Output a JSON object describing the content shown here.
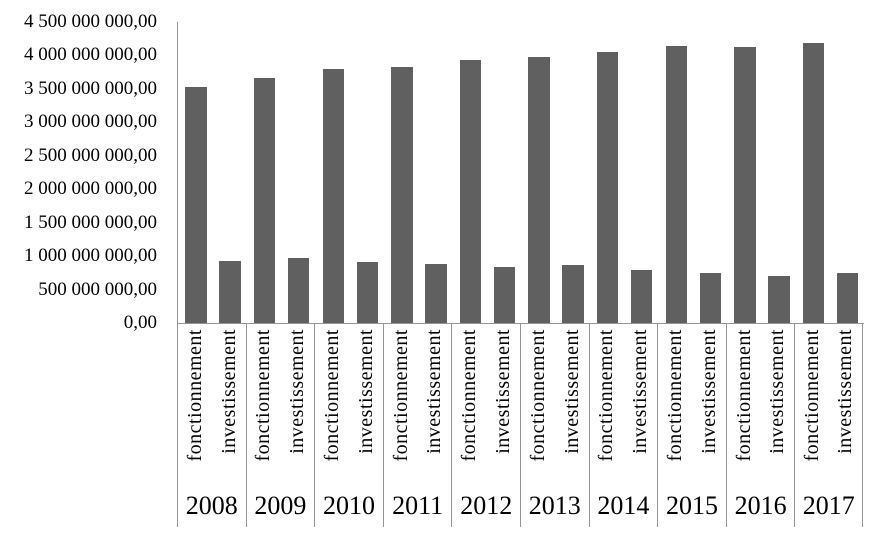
{
  "window": {
    "background": "#ffffff"
  },
  "chart_data": {
    "type": "bar",
    "title": "",
    "categories": [
      "2008",
      "2009",
      "2010",
      "2011",
      "2012",
      "2013",
      "2014",
      "2015",
      "2016",
      "2017"
    ],
    "sub_categories": [
      "fonctionnement",
      "investissement"
    ],
    "series": [
      {
        "name": "fonctionnement",
        "values": [
          3530000000,
          3660000000,
          3795000000,
          3830000000,
          3930000000,
          3980000000,
          4050000000,
          4140000000,
          4125000000,
          4190000000
        ]
      },
      {
        "name": "investissement",
        "values": [
          930000000,
          975000000,
          910000000,
          885000000,
          840000000,
          865000000,
          790000000,
          750000000,
          705000000,
          750000000
        ]
      }
    ],
    "xlabel": "",
    "ylabel": "",
    "ylim": [
      0,
      4500000000
    ],
    "ytick_step": 500000000,
    "ytick_labels": [
      "0,00",
      "500 000 000,00",
      "1 000 000 000,00",
      "1 500 000 000,00",
      "2 000 000 000,00",
      "2 500 000 000,00",
      "3 000 000 000,00",
      "3 500 000 000,00",
      "4 000 000 000,00",
      "4 500 000 000,00"
    ],
    "grid": false,
    "legend_position": "none",
    "category_label_rotation_deg": 90,
    "number_format": "fr-FR, 2 decimals",
    "colors": {
      "bar": "#606060",
      "axis": "#969696",
      "text": "#000000"
    }
  }
}
